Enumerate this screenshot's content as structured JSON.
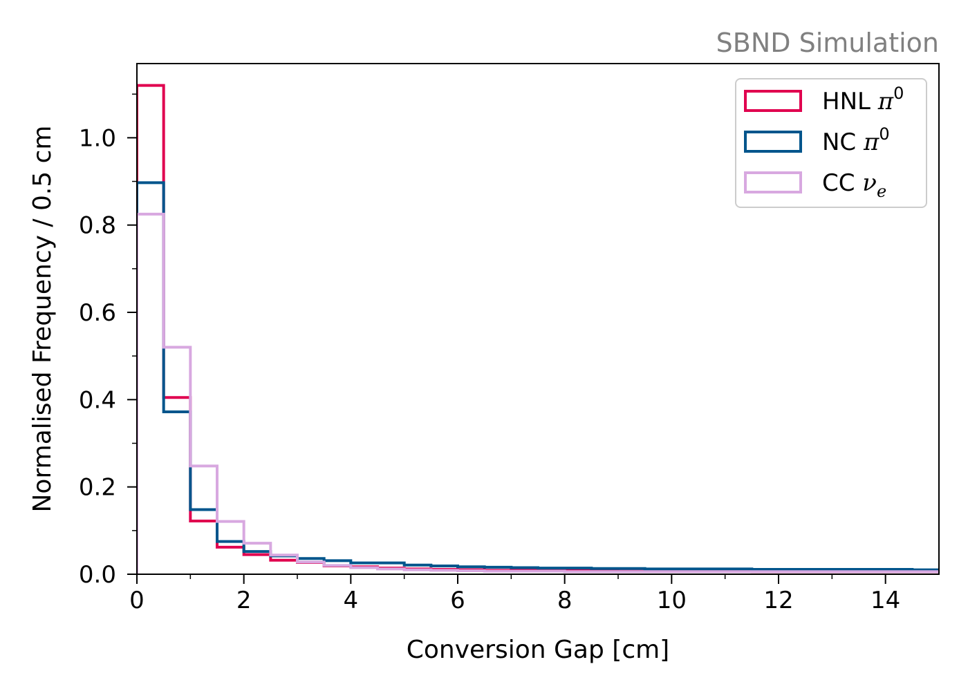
{
  "chart_data": {
    "type": "histogram",
    "annotation": "SBND Simulation",
    "annotation_color": "#808080",
    "xlabel": "Conversion Gap [cm]",
    "ylabel": "Normalised Frequency / 0.5 cm",
    "xlim": [
      0,
      15
    ],
    "ylim": [
      0,
      1.17
    ],
    "xticks": [
      "0",
      "2",
      "4",
      "6",
      "8",
      "10",
      "12",
      "14"
    ],
    "yticks": [
      "0.0",
      "0.2",
      "0.4",
      "0.6",
      "0.8",
      "1.0"
    ],
    "bin_edges": [
      0,
      0.5,
      1,
      1.5,
      2,
      2.5,
      3,
      3.5,
      4,
      4.5,
      5,
      5.5,
      6,
      6.5,
      7,
      7.5,
      8,
      8.5,
      9,
      9.5,
      10,
      10.5,
      11,
      11.5,
      12,
      12.5,
      13,
      13.5,
      14,
      14.5,
      15
    ],
    "legend_position": "top-right",
    "series": [
      {
        "name": "HNL",
        "symbol": "π",
        "sup": "0",
        "sub": "",
        "color": "#e0004f",
        "values": [
          1.12,
          0.405,
          0.122,
          0.062,
          0.045,
          0.032,
          0.027,
          0.019,
          0.017,
          0.014,
          0.012,
          0.011,
          0.01,
          0.009,
          0.009,
          0.008,
          0.008,
          0.008,
          0.007,
          0.007,
          0.007,
          0.007,
          0.007,
          0.006,
          0.006,
          0.006,
          0.006,
          0.006,
          0.006,
          0.006
        ]
      },
      {
        "name": "NC",
        "symbol": "π",
        "sup": "0",
        "sub": "",
        "color": "#00558c",
        "values": [
          0.897,
          0.372,
          0.148,
          0.075,
          0.052,
          0.042,
          0.036,
          0.031,
          0.026,
          0.026,
          0.021,
          0.019,
          0.017,
          0.016,
          0.015,
          0.014,
          0.014,
          0.013,
          0.013,
          0.012,
          0.012,
          0.012,
          0.012,
          0.011,
          0.011,
          0.011,
          0.011,
          0.011,
          0.011,
          0.01
        ]
      },
      {
        "name": "CC",
        "symbol": "ν",
        "sup": "",
        "sub": "e",
        "color": "#d8a8e0",
        "values": [
          0.825,
          0.52,
          0.248,
          0.121,
          0.071,
          0.044,
          0.028,
          0.02,
          0.015,
          0.012,
          0.01,
          0.009,
          0.008,
          0.007,
          0.007,
          0.007,
          0.006,
          0.006,
          0.006,
          0.006,
          0.006,
          0.006,
          0.006,
          0.006,
          0.006,
          0.006,
          0.006,
          0.006,
          0.006,
          0.006
        ]
      }
    ]
  }
}
